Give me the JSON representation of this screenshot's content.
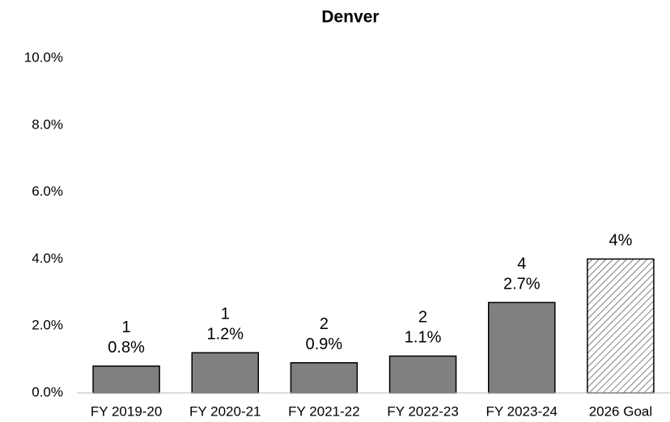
{
  "chart_data": {
    "type": "bar",
    "title": "Denver",
    "categories": [
      "FY 2019-20",
      "FY 2020-21",
      "FY 2021-22",
      "FY 2022-23",
      "FY 2023-24",
      "2026 Goal"
    ],
    "values": [
      0.8,
      1.2,
      0.9,
      1.1,
      2.7,
      4
    ],
    "value_labels": [
      "0.8%",
      "1.2%",
      "0.9%",
      "1.1%",
      "2.7%",
      "4%"
    ],
    "counts": [
      1,
      1,
      2,
      2,
      4,
      null
    ],
    "hatched": [
      false,
      false,
      false,
      false,
      false,
      true
    ],
    "color": "#808080",
    "ylim": [
      0,
      10
    ],
    "yticks": [
      {
        "value": 0,
        "label": "0.0%"
      },
      {
        "value": 2,
        "label": "2.0%"
      },
      {
        "value": 4,
        "label": "4.0%"
      },
      {
        "value": 6,
        "label": "6.0%"
      },
      {
        "value": 8,
        "label": "8.0%"
      },
      {
        "value": 10,
        "label": "10.0%"
      }
    ],
    "grid": false
  }
}
